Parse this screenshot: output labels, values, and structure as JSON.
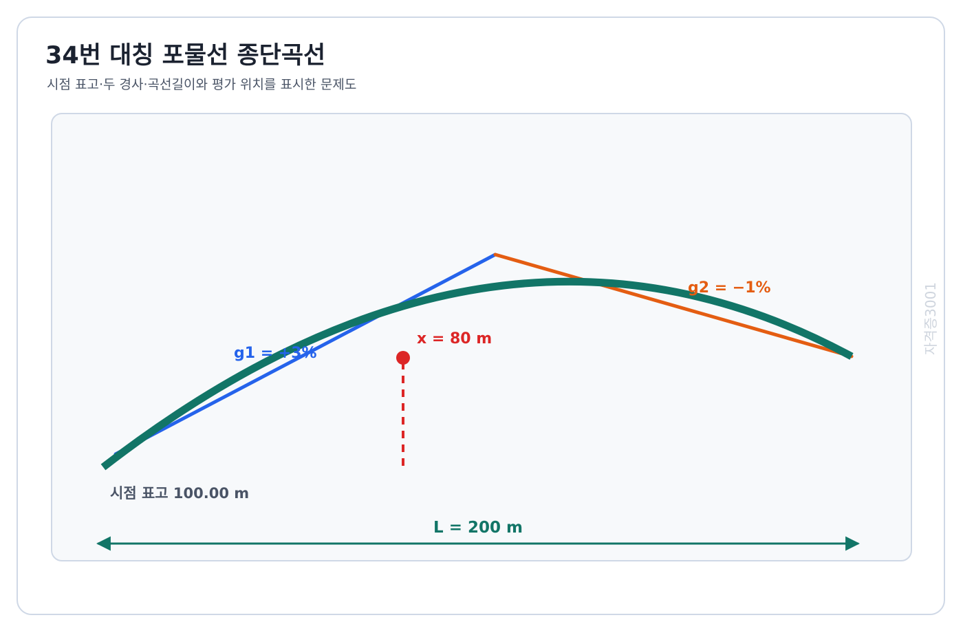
{
  "header": {
    "title": "34번 대칭 포물선 종단곡선",
    "subtitle": "시점 표고·두 경사·곡선길이와 평가 위치를 표시한 문제도"
  },
  "labels": {
    "g1": "g1 = +3%",
    "g2": "g2 = −1%",
    "x_position": "x = 80 m",
    "start_elevation": "시점 표고 100.00 m",
    "curve_length": "L = 200 m",
    "watermark": "자격증3001"
  },
  "curve": {
    "start_elevation_m": 100.0,
    "g1_percent": 3,
    "g2_percent": -1,
    "length_m": 200,
    "eval_x_m": 80
  },
  "colors": {
    "curve": "#127567",
    "g1": "#2563eb",
    "g2": "#e45d12",
    "marker": "#dc2626",
    "dimension": "#127567",
    "text_dark": "#4a5466"
  }
}
